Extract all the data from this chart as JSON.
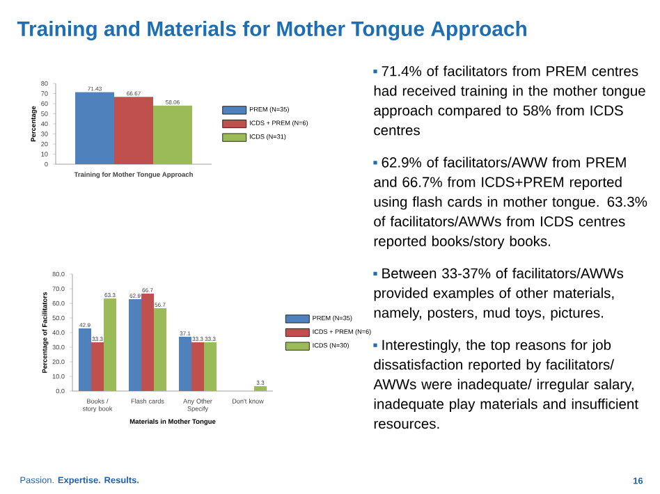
{
  "chart_data": [
    {
      "type": "bar",
      "categories": [
        "Training for Mother Tongue Approach"
      ],
      "ylabel": "Percentage",
      "ylim": [
        0,
        80
      ],
      "yticks": [
        0,
        10,
        20,
        30,
        40,
        50,
        60,
        70,
        80
      ],
      "data_labels": true,
      "legend": "right",
      "series": [
        {
          "name": "PREM (N=35)",
          "color": "#4f81bd",
          "values": [
            71.43
          ]
        },
        {
          "name": "ICDS + PREM (N=6)",
          "color": "#c0504d",
          "values": [
            66.67
          ]
        },
        {
          "name": "ICDS (N=31)",
          "color": "#9bbb59",
          "values": [
            58.06
          ]
        }
      ]
    },
    {
      "type": "bar",
      "categories": [
        "Books / story book",
        "Flash cards",
        "Any Other Specify",
        "Don't know"
      ],
      "xlabel": "Materials in Mother Tongue",
      "ylabel": "Percentage of Facilitators",
      "ylim": [
        0,
        80
      ],
      "yticks": [
        {
          "value": 0,
          "label": "0.0"
        },
        {
          "value": 10,
          "label": "10.0"
        },
        {
          "value": 20,
          "label": "20.0"
        },
        {
          "value": 30,
          "label": "30.0"
        },
        {
          "value": 40,
          "label": "40.0"
        },
        {
          "value": 50,
          "label": "50.0"
        },
        {
          "value": 60,
          "label": "60.0"
        },
        {
          "value": 70,
          "label": "70.0"
        },
        {
          "value": 80,
          "label": "80.0"
        }
      ],
      "data_labels": true,
      "legend": "right",
      "series": [
        {
          "name": "PREM (N=35)",
          "color": "#4f81bd",
          "values": [
            42.9,
            62.9,
            37.1,
            null
          ]
        },
        {
          "name": "ICDS + PREM (N=6)",
          "color": "#c0504d",
          "values": [
            33.3,
            66.7,
            33.3,
            null
          ]
        },
        {
          "name": "ICDS (N=30)",
          "color": "#9bbb59",
          "values": [
            63.3,
            56.7,
            33.3,
            3.3
          ]
        }
      ]
    },
    {
      "type": "other",
      "title": "Training and Materials for Mother Tongue Approach",
      "annotations": [
        "71.4% of facilitators from PREM centres had received training in the mother tongue approach compared to 58% from ICDS centres",
        "62.9% of facilitators/AWW from PREM and 66.7% from ICDS+PREM reported using flash cards in mother tongue. 63.3% of facilitators/AWWs from ICDS centres reported books/story books.",
        "Between 33-37% of facilitators/AWWs provided examples of other materials, namely, posters, mud toys, pictures.",
        "Interestingly, the top reasons for job dissatisfaction reported by facilitators/ AWWs were inadequate/ irregular salary, inadequate play materials and insufficient resources.",
        "Passion. **Expertise. Results.**",
        "16"
      ]
    }
  ]
}
